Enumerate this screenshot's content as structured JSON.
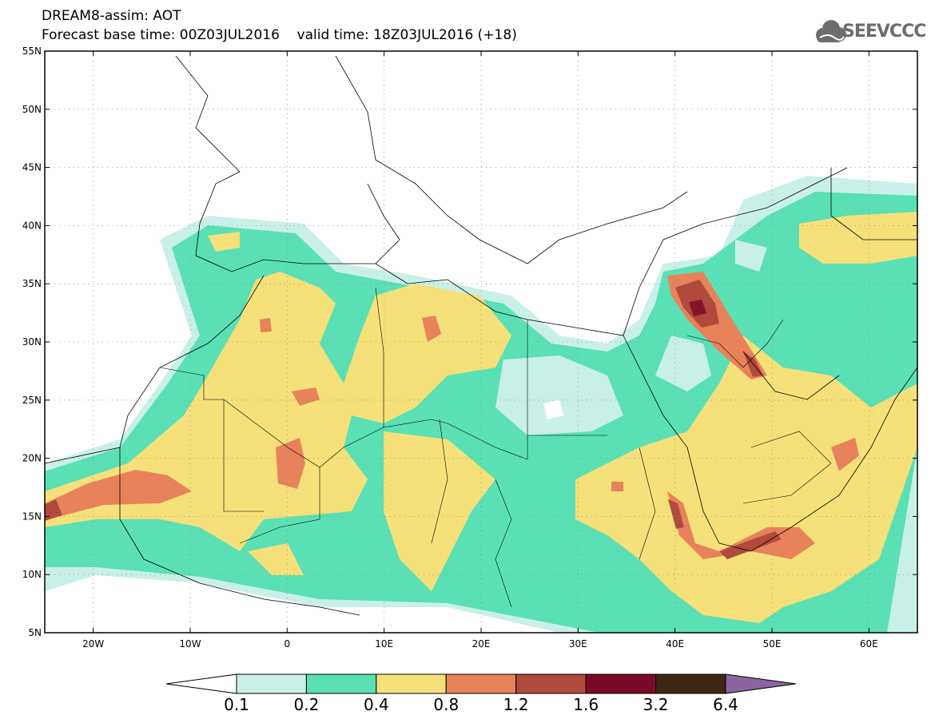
{
  "header": {
    "line1": "DREAM8-assim: AOT",
    "line2": "Forecast base time: 00Z03JUL2016    valid time: 18Z03JUL2016 (+18)"
  },
  "logo": {
    "text": "SEEVCCC",
    "icon": "cloud-icon",
    "color": "#6d6d6d"
  },
  "map": {
    "lon_range": [
      -25,
      65
    ],
    "lat_range": [
      5,
      55
    ],
    "lon_ticks": [
      "20W",
      "10W",
      "0",
      "10E",
      "20E",
      "30E",
      "40E",
      "50E",
      "60E"
    ],
    "lat_ticks": [
      "5N",
      "10N",
      "15N",
      "20N",
      "25N",
      "30N",
      "35N",
      "40N",
      "45N",
      "50N",
      "55N"
    ],
    "grid": "dotted"
  },
  "colorbar": {
    "levels": [
      "0.1",
      "0.2",
      "0.4",
      "0.8",
      "1.2",
      "1.6",
      "3.2",
      "6.4"
    ],
    "colors": [
      "#ffffff",
      "#c8f0e8",
      "#5ae0b4",
      "#f5e07a",
      "#e8825a",
      "#b04a3c",
      "#7a0a28",
      "#3c2814",
      "#8c64a0"
    ]
  }
}
